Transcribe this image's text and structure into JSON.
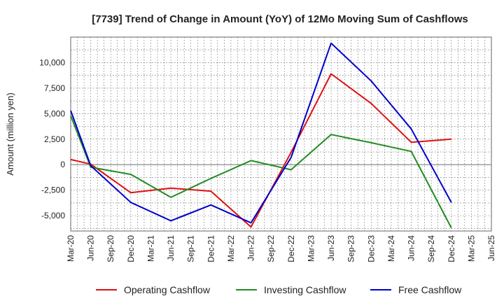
{
  "chart_data": {
    "type": "line",
    "title": "[7739]  Trend of Change in Amount (YoY) of 12Mo Moving Sum of Cashflows",
    "xlabel": "",
    "ylabel": "Amount (million yen)",
    "ylim": [
      -6500,
      12500
    ],
    "yticks": [
      -5000,
      -2500,
      0,
      2500,
      5000,
      7500,
      10000
    ],
    "ytick_labels": [
      "-5,000",
      "-2,500",
      "0",
      "2,500",
      "5,000",
      "7,500",
      "10,000"
    ],
    "grid": true,
    "legend_position": "bottom",
    "categories": [
      "Mar-20",
      "Jun-20",
      "Sep-20",
      "Dec-20",
      "Mar-21",
      "Jun-21",
      "Sep-21",
      "Dec-21",
      "Mar-22",
      "Jun-22",
      "Sep-22",
      "Dec-22",
      "Mar-23",
      "Jun-23",
      "Sep-23",
      "Dec-23",
      "Mar-24",
      "Jun-24",
      "Sep-24",
      "Dec-24",
      "Mar-25",
      "Jun-25"
    ],
    "series": [
      {
        "name": "Operating Cashflow",
        "color": "#dd1111",
        "values": [
          500,
          50,
          null,
          -2750,
          null,
          -2300,
          null,
          -2600,
          null,
          -6100,
          null,
          1200,
          null,
          8900,
          null,
          6000,
          null,
          2200,
          null,
          2500,
          null,
          null
        ]
      },
      {
        "name": "Investing Cashflow",
        "color": "#228b22",
        "values": [
          4800,
          -250,
          null,
          -950,
          null,
          -3200,
          null,
          -1350,
          null,
          400,
          null,
          -500,
          null,
          2950,
          null,
          2150,
          null,
          1300,
          null,
          -6200,
          null,
          null
        ]
      },
      {
        "name": "Free Cashflow",
        "color": "#0000cc",
        "values": [
          5300,
          -100,
          null,
          -3700,
          null,
          -5500,
          null,
          -3950,
          null,
          -5700,
          null,
          700,
          null,
          11900,
          null,
          8200,
          null,
          3500,
          null,
          -3700,
          null,
          null
        ]
      }
    ]
  }
}
